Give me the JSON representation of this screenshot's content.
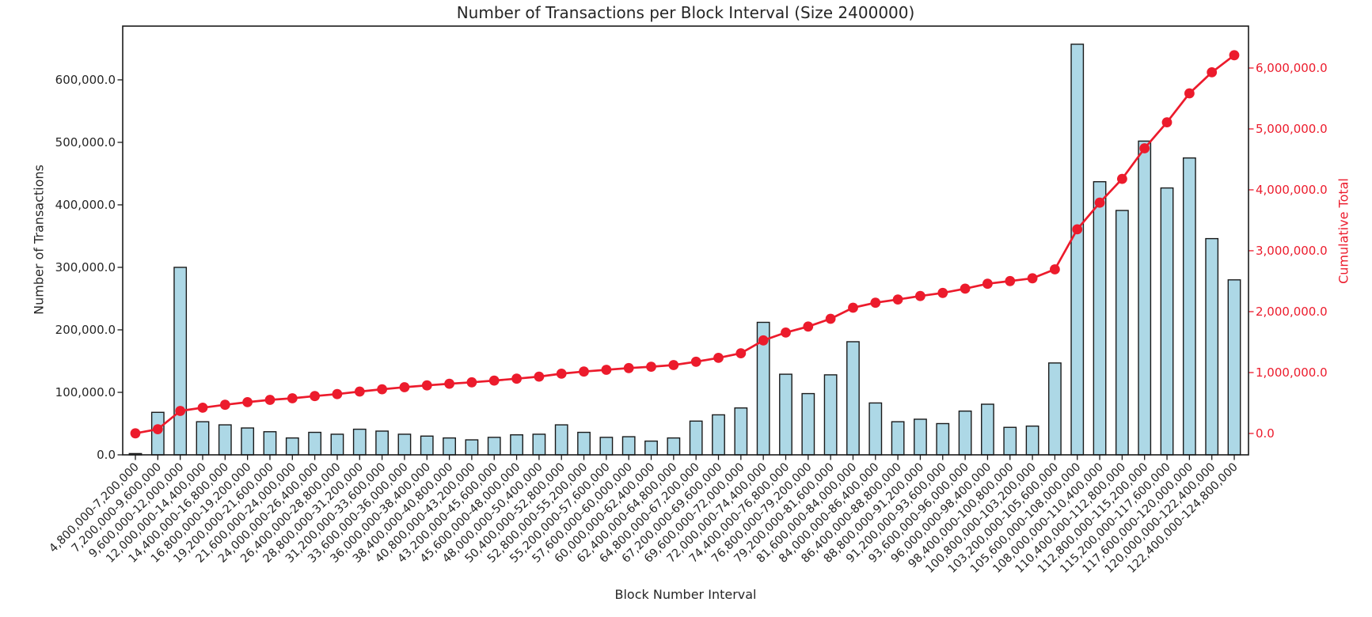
{
  "chart_data": {
    "type": "bar",
    "title": "Number of Transactions per Block Interval (Size 2400000)",
    "grid": false,
    "legend_position": "none",
    "categories": [
      "4,800,000-7,200,000",
      "7,200,000-9,600,000",
      "9,600,000-12,000,000",
      "12,000,000-14,400,000",
      "14,400,000-16,800,000",
      "16,800,000-19,200,000",
      "19,200,000-21,600,000",
      "21,600,000-24,000,000",
      "24,000,000-26,400,000",
      "26,400,000-28,800,000",
      "28,800,000-31,200,000",
      "31,200,000-33,600,000",
      "33,600,000-36,000,000",
      "36,000,000-38,400,000",
      "38,400,000-40,800,000",
      "40,800,000-43,200,000",
      "43,200,000-45,600,000",
      "45,600,000-48,000,000",
      "48,000,000-50,400,000",
      "50,400,000-52,800,000",
      "52,800,000-55,200,000",
      "55,200,000-57,600,000",
      "57,600,000-60,000,000",
      "60,000,000-62,400,000",
      "62,400,000-64,800,000",
      "64,800,000-67,200,000",
      "67,200,000-69,600,000",
      "69,600,000-72,000,000",
      "72,000,000-74,400,000",
      "74,400,000-76,800,000",
      "76,800,000-79,200,000",
      "79,200,000-81,600,000",
      "81,600,000-84,000,000",
      "84,000,000-86,400,000",
      "86,400,000-88,800,000",
      "88,800,000-91,200,000",
      "91,200,000-93,600,000",
      "93,600,000-96,000,000",
      "96,000,000-98,400,000",
      "98,400,000-100,800,000",
      "100,800,000-103,200,000",
      "103,200,000-105,600,000",
      "105,600,000-108,000,000",
      "108,000,000-110,400,000",
      "110,400,000-112,800,000",
      "112,800,000-115,200,000",
      "115,200,000-117,600,000",
      "117,600,000-120,000,000",
      "120,000,000-122,400,000",
      "122,400,000-124,800,000"
    ],
    "series": [
      {
        "name": "Number of Transactions",
        "type": "bar",
        "axis": "left",
        "color": "#ADD8E6",
        "edge_color": "#1a1a1a",
        "values": [
          2000,
          68000,
          300000,
          53000,
          48000,
          43000,
          37000,
          27000,
          36000,
          33000,
          41000,
          38000,
          33000,
          30000,
          27000,
          24000,
          28000,
          32000,
          33000,
          48000,
          36000,
          28000,
          29000,
          22000,
          27000,
          54000,
          64000,
          75000,
          212000,
          129000,
          98000,
          128000,
          181000,
          83000,
          53000,
          57000,
          50000,
          70000,
          81000,
          44000,
          46000,
          147000,
          657000,
          437000,
          391000,
          502000,
          427000,
          475000,
          346000,
          280000
        ]
      },
      {
        "name": "Cumulative Total",
        "type": "line",
        "axis": "right",
        "color": "#ec1b2c",
        "marker": "circle",
        "values": [
          2000,
          70000,
          370000,
          423000,
          471000,
          514000,
          551000,
          578000,
          614000,
          647000,
          688000,
          726000,
          759000,
          789000,
          816000,
          840000,
          868000,
          900000,
          933000,
          981000,
          1017000,
          1045000,
          1074000,
          1096000,
          1123000,
          1177000,
          1241000,
          1316000,
          1528000,
          1657000,
          1755000,
          1883000,
          2064000,
          2147000,
          2200000,
          2257000,
          2307000,
          2377000,
          2458000,
          2502000,
          2548000,
          2695000,
          3352000,
          3789000,
          4180000,
          4682000,
          5109000,
          5584000,
          5930000,
          6210000
        ]
      }
    ],
    "axes": {
      "x": {
        "label": "Block Number Interval",
        "tick_rotation": 45
      },
      "y_left": {
        "label": "Number of Transactions",
        "color": "#262626",
        "tick_values": [
          0,
          100000,
          200000,
          300000,
          400000,
          500000,
          600000
        ],
        "tick_labels": [
          "0.0",
          "100,000.0",
          "200,000.0",
          "300,000.0",
          "400,000.0",
          "500,000.0",
          "600,000.0"
        ],
        "lim": [
          0,
          686000
        ]
      },
      "y_right": {
        "label": "Cumulative Total",
        "color": "#ec1b2c",
        "tick_values": [
          0,
          1000000,
          2000000,
          3000000,
          4000000,
          5000000,
          6000000
        ],
        "tick_labels": [
          "0.0",
          "1,000,000.0",
          "2,000,000.0",
          "3,000,000.0",
          "4,000,000.0",
          "5,000,000.0",
          "6,000,000.0"
        ],
        "lim": [
          -351000,
          6688000
        ]
      }
    }
  }
}
